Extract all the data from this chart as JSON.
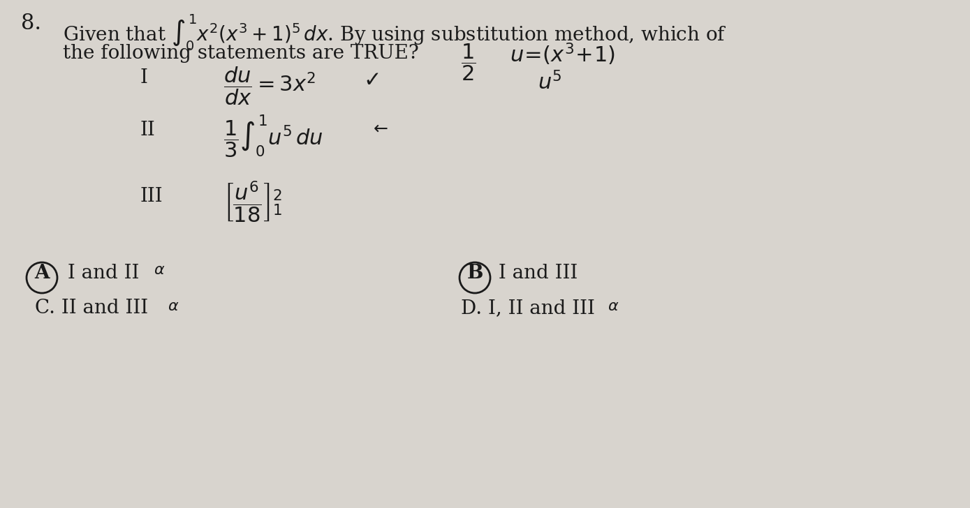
{
  "bg_color": "#d8d4ce",
  "text_color": "#1a1a1a",
  "question_number": "8.",
  "title_line1": "Given that",
  "title_line2": "the following statements are TRUE?",
  "integral_main": "$\\int_0^1 x^2(x^3+1)^5\\, dx$",
  "statement_I_label": "I",
  "statement_I": "$\\dfrac{du}{dx} = 3x^2$",
  "statement_II_label": "II",
  "statement_II": "$\\dfrac{1}{3}\\int_0^1 u^5\\, du$",
  "statement_III_label": "III",
  "statement_III": "$\\left[\\dfrac{u^6}{18}\\right]_1^2$",
  "handwritten_top": "$\\dfrac{1}{2}$",
  "handwritten_u": "$u = (x^3+1)$",
  "handwritten_u5": "$u^5$",
  "choice_A": "A  I and II",
  "choice_B": "B  I and III",
  "choice_C": "C. II and III",
  "choice_D": "D. I, II and III",
  "checkmark_I": "✓",
  "annotation_II": "←",
  "annotation_III_top": "2",
  "annotation_III_bot": "1"
}
